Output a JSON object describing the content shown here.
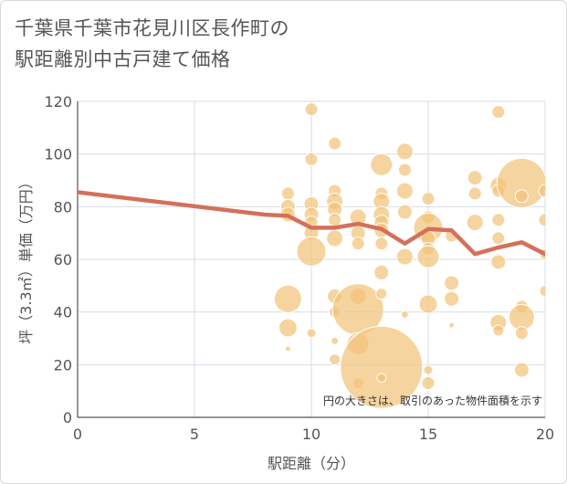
{
  "title_line1": "千葉県千葉市花見川区長作町の",
  "title_line2": "駅距離別中古戸建て価格",
  "colors": {
    "bubble": "#f2c47a",
    "bubble_stroke": "#e8b462",
    "line": "#d4705a",
    "grid": "#d5dde5",
    "axis": "#555555"
  },
  "chart_data": {
    "type": "scatter",
    "title": "千葉県千葉市花見川区長作町の駅距離別中古戸建て価格",
    "xlabel": "駅距離（分）",
    "ylabel": "坪（3.3㎡）単価（万円）",
    "xlim": [
      0,
      20
    ],
    "ylim": [
      0,
      120
    ],
    "xticks": [
      0,
      5,
      10,
      15,
      20
    ],
    "yticks": [
      0,
      20,
      40,
      60,
      80,
      100,
      120
    ],
    "grid": true,
    "note": "円の大きさは、取引のあった物件面積を示す",
    "trend_line": {
      "x": [
        0,
        8,
        9,
        10,
        11,
        12,
        13,
        14,
        15,
        16,
        17,
        18,
        19,
        20
      ],
      "y": [
        85.5,
        77,
        76.5,
        72,
        72,
        73.5,
        71.5,
        66,
        71.5,
        71,
        62,
        64.5,
        66.5,
        62
      ]
    },
    "bubbles": [
      {
        "x": 9,
        "y": 85,
        "r": 7
      },
      {
        "x": 9,
        "y": 80,
        "r": 8
      },
      {
        "x": 9,
        "y": 77,
        "r": 8
      },
      {
        "x": 9,
        "y": 45,
        "r": 15
      },
      {
        "x": 9,
        "y": 34,
        "r": 10
      },
      {
        "x": 9,
        "y": 26,
        "r": 3
      },
      {
        "x": 10,
        "y": 117,
        "r": 7
      },
      {
        "x": 10,
        "y": 98,
        "r": 7
      },
      {
        "x": 10,
        "y": 81,
        "r": 8
      },
      {
        "x": 10,
        "y": 77,
        "r": 8
      },
      {
        "x": 10,
        "y": 74,
        "r": 7
      },
      {
        "x": 10,
        "y": 70,
        "r": 8
      },
      {
        "x": 10,
        "y": 63,
        "r": 16
      },
      {
        "x": 10,
        "y": 32,
        "r": 5
      },
      {
        "x": 11,
        "y": 104,
        "r": 7
      },
      {
        "x": 11,
        "y": 86,
        "r": 7
      },
      {
        "x": 11,
        "y": 82,
        "r": 9
      },
      {
        "x": 11,
        "y": 79,
        "r": 8
      },
      {
        "x": 11,
        "y": 75,
        "r": 7
      },
      {
        "x": 11,
        "y": 68,
        "r": 9
      },
      {
        "x": 11,
        "y": 46,
        "r": 8
      },
      {
        "x": 11,
        "y": 40,
        "r": 6
      },
      {
        "x": 11,
        "y": 29,
        "r": 4
      },
      {
        "x": 11,
        "y": 22,
        "r": 6
      },
      {
        "x": 12,
        "y": 76,
        "r": 9
      },
      {
        "x": 12,
        "y": 70,
        "r": 8
      },
      {
        "x": 12,
        "y": 66,
        "r": 7
      },
      {
        "x": 12,
        "y": 46,
        "r": 9
      },
      {
        "x": 12,
        "y": 41,
        "r": 28
      },
      {
        "x": 12,
        "y": 28,
        "r": 12
      },
      {
        "x": 12,
        "y": 13,
        "r": 6
      },
      {
        "x": 13,
        "y": 96,
        "r": 12
      },
      {
        "x": 13,
        "y": 85,
        "r": 7
      },
      {
        "x": 13,
        "y": 82,
        "r": 9
      },
      {
        "x": 13,
        "y": 77,
        "r": 9
      },
      {
        "x": 13,
        "y": 74,
        "r": 8
      },
      {
        "x": 13,
        "y": 71,
        "r": 8
      },
      {
        "x": 13,
        "y": 66,
        "r": 7
      },
      {
        "x": 13,
        "y": 55,
        "r": 8
      },
      {
        "x": 13,
        "y": 47,
        "r": 6
      },
      {
        "x": 13,
        "y": 19,
        "r": 45
      },
      {
        "x": 13,
        "y": 15,
        "r": 5
      },
      {
        "x": 14,
        "y": 101,
        "r": 9
      },
      {
        "x": 14,
        "y": 94,
        "r": 7
      },
      {
        "x": 14,
        "y": 86,
        "r": 9
      },
      {
        "x": 14,
        "y": 78,
        "r": 8
      },
      {
        "x": 14,
        "y": 61,
        "r": 9
      },
      {
        "x": 14,
        "y": 39,
        "r": 4
      },
      {
        "x": 15,
        "y": 83,
        "r": 7
      },
      {
        "x": 15,
        "y": 76,
        "r": 7
      },
      {
        "x": 15,
        "y": 72,
        "r": 16
      },
      {
        "x": 15,
        "y": 68,
        "r": 8
      },
      {
        "x": 15,
        "y": 64,
        "r": 7
      },
      {
        "x": 15,
        "y": 61,
        "r": 12
      },
      {
        "x": 15,
        "y": 43,
        "r": 10
      },
      {
        "x": 15,
        "y": 18,
        "r": 5
      },
      {
        "x": 15,
        "y": 13,
        "r": 7
      },
      {
        "x": 16,
        "y": 69,
        "r": 7
      },
      {
        "x": 16,
        "y": 51,
        "r": 8
      },
      {
        "x": 16,
        "y": 45,
        "r": 8
      },
      {
        "x": 16,
        "y": 35,
        "r": 3
      },
      {
        "x": 17,
        "y": 91,
        "r": 8
      },
      {
        "x": 17,
        "y": 85,
        "r": 7
      },
      {
        "x": 17,
        "y": 74,
        "r": 9
      },
      {
        "x": 18,
        "y": 116,
        "r": 7
      },
      {
        "x": 18,
        "y": 88,
        "r": 9
      },
      {
        "x": 18,
        "y": 86,
        "r": 7
      },
      {
        "x": 18,
        "y": 75,
        "r": 7
      },
      {
        "x": 18,
        "y": 68,
        "r": 7
      },
      {
        "x": 18,
        "y": 59,
        "r": 8
      },
      {
        "x": 18,
        "y": 36,
        "r": 9
      },
      {
        "x": 18,
        "y": 33,
        "r": 6
      },
      {
        "x": 19,
        "y": 89,
        "r": 27
      },
      {
        "x": 19,
        "y": 84,
        "r": 7
      },
      {
        "x": 19,
        "y": 42,
        "r": 7
      },
      {
        "x": 19,
        "y": 38,
        "r": 14
      },
      {
        "x": 19,
        "y": 32,
        "r": 7
      },
      {
        "x": 19,
        "y": 18,
        "r": 8
      },
      {
        "x": 20,
        "y": 86,
        "r": 7
      },
      {
        "x": 20,
        "y": 75,
        "r": 7
      },
      {
        "x": 20,
        "y": 62,
        "r": 6
      },
      {
        "x": 20,
        "y": 48,
        "r": 6
      }
    ]
  }
}
